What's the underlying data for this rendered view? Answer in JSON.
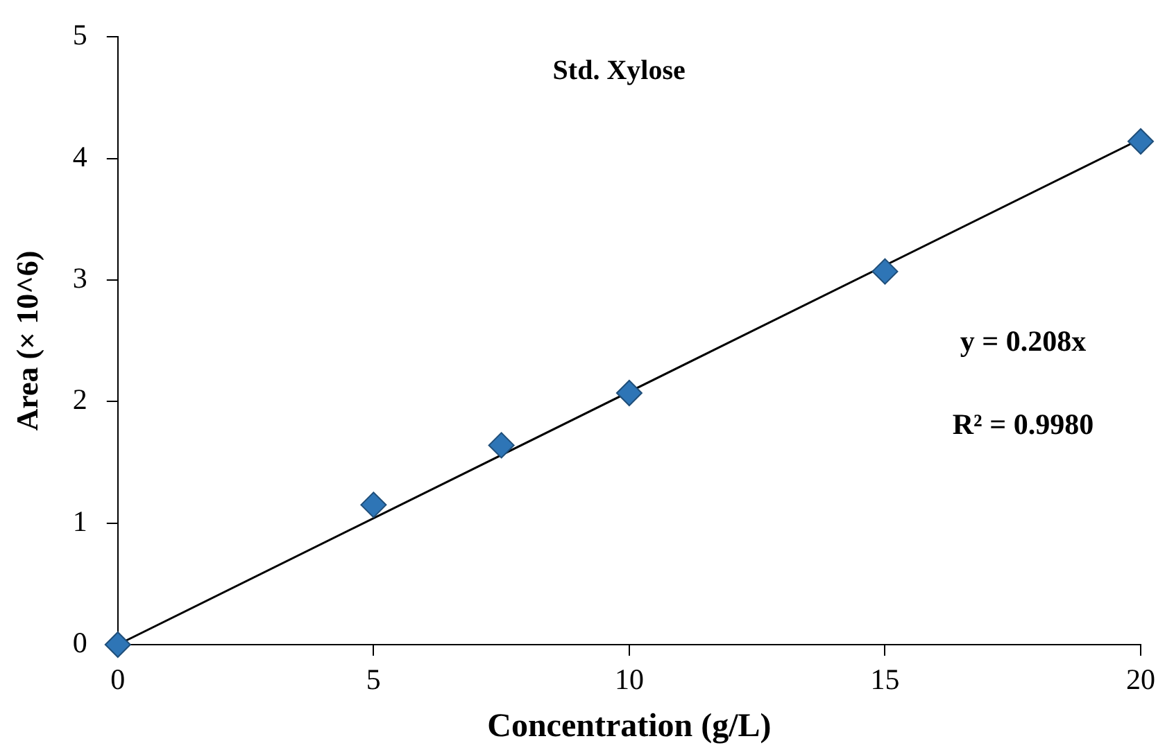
{
  "chart_data": {
    "type": "scatter",
    "title": "Std. Xylose",
    "xlabel": "Concentration (g/L)",
    "ylabel": "Area (× 10^6)",
    "x": [
      0,
      5,
      7.5,
      10,
      15,
      20
    ],
    "series": [
      {
        "color": "#2e75b6",
        "marker": "diamond",
        "values": [
          0,
          1.15,
          1.64,
          2.07,
          3.07,
          4.14
        ]
      },
      {
        "type": "line",
        "color": "#000000",
        "x": [
          0,
          20
        ],
        "values": [
          0,
          4.16
        ],
        "marker": "none",
        "line_style": "solid"
      }
    ],
    "xlim": [
      0,
      20
    ],
    "xticks": [
      0,
      5,
      10,
      15,
      20
    ],
    "ylim": [
      0,
      5
    ],
    "yticks": [
      0,
      1,
      2,
      3,
      4,
      5
    ],
    "grid": false,
    "legend": false,
    "annotations": [
      "y = 0.208x",
      "R² = 0.9980"
    ]
  }
}
